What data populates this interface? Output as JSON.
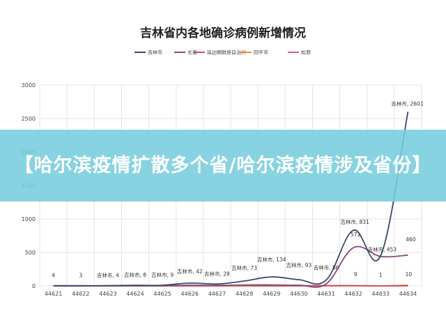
{
  "banner": {
    "text": "【哈尔滨疫情扩散多个省/哈尔滨疫情涉及省份】"
  },
  "chart_data": {
    "type": "line",
    "title": "吉林省内各地确诊病例新增情况",
    "categories": [
      "44621",
      "44622",
      "44623",
      "44624",
      "44625",
      "44626",
      "44627",
      "44628",
      "44629",
      "44630",
      "44631",
      "44632",
      "44633",
      "44634"
    ],
    "yticks": [
      "0",
      "500",
      "1000",
      "1500",
      "2000",
      "2500",
      "3000"
    ],
    "ylim": [
      0,
      3000
    ],
    "grid": true,
    "legend_position": "top",
    "series": [
      {
        "name": "吉林市",
        "color": "#3a4a6b",
        "values": [
          0,
          0,
          4,
          8,
          9,
          42,
          28,
          73,
          134,
          93,
          86,
          831,
          453,
          2601
        ]
      },
      {
        "name": "长春",
        "color": "#8a4a78",
        "values": [
          4,
          3,
          2,
          2,
          3,
          10,
          8,
          13,
          15,
          10,
          30,
          571,
          440,
          460
        ]
      },
      {
        "name": "延边朝鲜族自治州",
        "color": "#c94d60",
        "values": [
          0,
          0,
          0,
          0,
          0,
          1,
          0,
          5,
          1,
          3,
          5,
          5,
          1,
          5
        ]
      },
      {
        "name": "四平市",
        "color": "#e8922e",
        "values": [
          0,
          0,
          0,
          0,
          0,
          0,
          0,
          0,
          0,
          0,
          2,
          1,
          1,
          10
        ]
      },
      {
        "name": "松原",
        "color": "#e85a7a",
        "values": [
          0,
          0,
          0,
          0,
          0,
          0,
          0,
          0,
          0,
          0,
          0,
          0,
          0,
          0
        ]
      }
    ],
    "data_labels": [
      {
        "x": "44621",
        "text": "4"
      },
      {
        "x": "44622",
        "text": "3"
      },
      {
        "x": "44623",
        "text": "吉林市, 4"
      },
      {
        "x": "44624",
        "text": "吉林市, 8"
      },
      {
        "x": "44625",
        "text": "吉林市, 9"
      },
      {
        "x": "44626",
        "text": "吉林市, 42"
      },
      {
        "x": "44627",
        "text": "吉林市, 28"
      },
      {
        "x": "44628",
        "text": "吉林市, 73"
      },
      {
        "x": "44629",
        "text": "吉林市, 134"
      },
      {
        "x": "44630",
        "text": "吉林市, 93"
      },
      {
        "x": "44631",
        "text": "吉林市, 86"
      },
      {
        "x": "44632",
        "text": "吉林市, 831"
      },
      {
        "x": "44632",
        "text": "571"
      },
      {
        "x": "44633",
        "text": "吉林市, 453"
      },
      {
        "x": "44634",
        "text": "吉林市, 2601"
      },
      {
        "x": "44634",
        "text": "460"
      },
      {
        "x": "44632",
        "text": "9"
      },
      {
        "x": "44633",
        "text": "1"
      },
      {
        "x": "44634",
        "text": "10"
      }
    ]
  }
}
